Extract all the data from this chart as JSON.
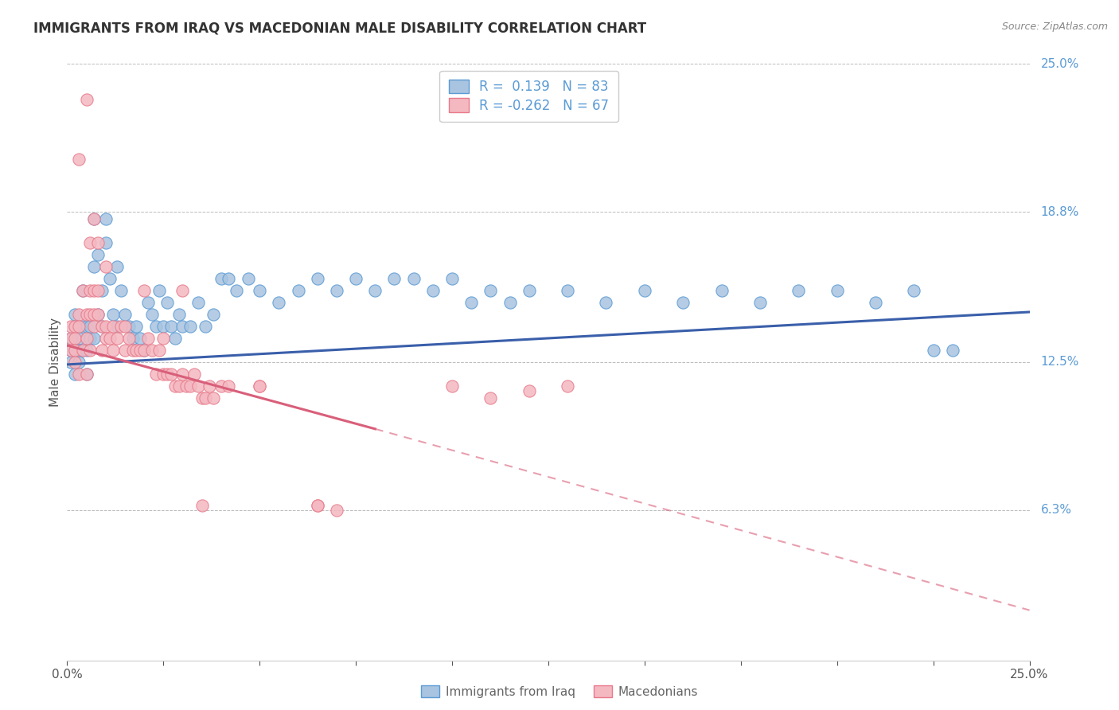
{
  "title": "IMMIGRANTS FROM IRAQ VS MACEDONIAN MALE DISABILITY CORRELATION CHART",
  "source": "Source: ZipAtlas.com",
  "ylabel": "Male Disability",
  "xlim": [
    0.0,
    0.25
  ],
  "ylim": [
    0.0,
    0.25
  ],
  "hlines_y": [
    0.063,
    0.125,
    0.188,
    0.25
  ],
  "right_ytick_labels": [
    "25.0%",
    "18.8%",
    "12.5%",
    "6.3%"
  ],
  "right_ytick_values": [
    0.25,
    0.188,
    0.125,
    0.063
  ],
  "xtick_values": [
    0.0,
    0.025,
    0.05,
    0.075,
    0.1,
    0.125,
    0.15,
    0.175,
    0.2,
    0.225,
    0.25
  ],
  "xtick_labels": [
    "0.0%",
    "",
    "",
    "",
    "",
    "",
    "",
    "",
    "",
    "",
    "25.0%"
  ],
  "legend_label1": "Immigrants from Iraq",
  "legend_label2": "Macedonians",
  "R1": 0.139,
  "N1": 83,
  "R2": -0.262,
  "N2": 67,
  "color_iraq": "#a8c4e0",
  "color_iraq_dark": "#5b9bd5",
  "color_mac": "#f4b8c1",
  "color_mac_dark": "#e87a8a",
  "color_blue_line": "#3a5faa",
  "color_pink_line": "#d95f7a",
  "color_label": "#5b9bd5",
  "iraq_line_x0": 0.0,
  "iraq_line_y0": 0.124,
  "iraq_line_x1": 0.25,
  "iraq_line_y1": 0.146,
  "mac_line_solid_x0": 0.0,
  "mac_line_solid_y0": 0.132,
  "mac_line_solid_x1": 0.08,
  "mac_line_solid_y1": 0.097,
  "mac_line_dash_x0": 0.08,
  "mac_line_dash_y0": 0.097,
  "mac_line_dash_x1": 0.25,
  "mac_line_dash_y1": 0.021,
  "iraq_x": [
    0.001,
    0.001,
    0.001,
    0.002,
    0.002,
    0.002,
    0.002,
    0.003,
    0.003,
    0.003,
    0.004,
    0.004,
    0.004,
    0.005,
    0.005,
    0.005,
    0.006,
    0.006,
    0.007,
    0.007,
    0.007,
    0.008,
    0.008,
    0.009,
    0.009,
    0.01,
    0.01,
    0.011,
    0.012,
    0.013,
    0.013,
    0.014,
    0.015,
    0.016,
    0.017,
    0.018,
    0.019,
    0.02,
    0.021,
    0.022,
    0.023,
    0.024,
    0.025,
    0.026,
    0.027,
    0.028,
    0.029,
    0.03,
    0.032,
    0.034,
    0.036,
    0.038,
    0.04,
    0.042,
    0.044,
    0.047,
    0.05,
    0.055,
    0.06,
    0.065,
    0.07,
    0.075,
    0.08,
    0.085,
    0.09,
    0.095,
    0.1,
    0.105,
    0.11,
    0.115,
    0.12,
    0.13,
    0.14,
    0.15,
    0.16,
    0.17,
    0.18,
    0.19,
    0.2,
    0.21,
    0.22,
    0.225,
    0.23
  ],
  "iraq_y": [
    0.13,
    0.135,
    0.125,
    0.12,
    0.13,
    0.14,
    0.145,
    0.125,
    0.135,
    0.13,
    0.14,
    0.155,
    0.13,
    0.12,
    0.14,
    0.13,
    0.135,
    0.14,
    0.185,
    0.165,
    0.135,
    0.17,
    0.145,
    0.155,
    0.14,
    0.185,
    0.175,
    0.16,
    0.145,
    0.165,
    0.14,
    0.155,
    0.145,
    0.14,
    0.135,
    0.14,
    0.135,
    0.13,
    0.15,
    0.145,
    0.14,
    0.155,
    0.14,
    0.15,
    0.14,
    0.135,
    0.145,
    0.14,
    0.14,
    0.15,
    0.14,
    0.145,
    0.16,
    0.16,
    0.155,
    0.16,
    0.155,
    0.15,
    0.155,
    0.16,
    0.155,
    0.16,
    0.155,
    0.16,
    0.16,
    0.155,
    0.16,
    0.15,
    0.155,
    0.15,
    0.155,
    0.155,
    0.15,
    0.155,
    0.15,
    0.155,
    0.15,
    0.155,
    0.155,
    0.15,
    0.155,
    0.13,
    0.13
  ],
  "mac_x": [
    0.001,
    0.001,
    0.001,
    0.002,
    0.002,
    0.002,
    0.002,
    0.003,
    0.003,
    0.003,
    0.004,
    0.004,
    0.005,
    0.005,
    0.005,
    0.006,
    0.006,
    0.006,
    0.007,
    0.007,
    0.007,
    0.008,
    0.008,
    0.009,
    0.009,
    0.01,
    0.01,
    0.011,
    0.012,
    0.012,
    0.013,
    0.014,
    0.015,
    0.016,
    0.017,
    0.018,
    0.019,
    0.02,
    0.021,
    0.022,
    0.023,
    0.024,
    0.025,
    0.026,
    0.027,
    0.028,
    0.029,
    0.03,
    0.031,
    0.032,
    0.033,
    0.034,
    0.035,
    0.036,
    0.037,
    0.038,
    0.04,
    0.042,
    0.05,
    0.05,
    0.065,
    0.065,
    0.07,
    0.1,
    0.11,
    0.12,
    0.13
  ],
  "mac_y": [
    0.135,
    0.13,
    0.14,
    0.14,
    0.135,
    0.13,
    0.125,
    0.145,
    0.14,
    0.12,
    0.155,
    0.13,
    0.145,
    0.135,
    0.12,
    0.155,
    0.145,
    0.13,
    0.155,
    0.145,
    0.14,
    0.155,
    0.145,
    0.14,
    0.13,
    0.14,
    0.135,
    0.135,
    0.14,
    0.13,
    0.135,
    0.14,
    0.13,
    0.135,
    0.13,
    0.13,
    0.13,
    0.13,
    0.135,
    0.13,
    0.12,
    0.13,
    0.12,
    0.12,
    0.12,
    0.115,
    0.115,
    0.12,
    0.115,
    0.115,
    0.12,
    0.115,
    0.11,
    0.11,
    0.115,
    0.11,
    0.115,
    0.115,
    0.115,
    0.115,
    0.065,
    0.065,
    0.063,
    0.115,
    0.11,
    0.113,
    0.115
  ],
  "mac_x_outliers": [
    0.003,
    0.005,
    0.006,
    0.007,
    0.008,
    0.01,
    0.015,
    0.02,
    0.025,
    0.03,
    0.035
  ],
  "mac_y_outliers": [
    0.21,
    0.235,
    0.175,
    0.185,
    0.175,
    0.165,
    0.14,
    0.155,
    0.135,
    0.155,
    0.065
  ]
}
